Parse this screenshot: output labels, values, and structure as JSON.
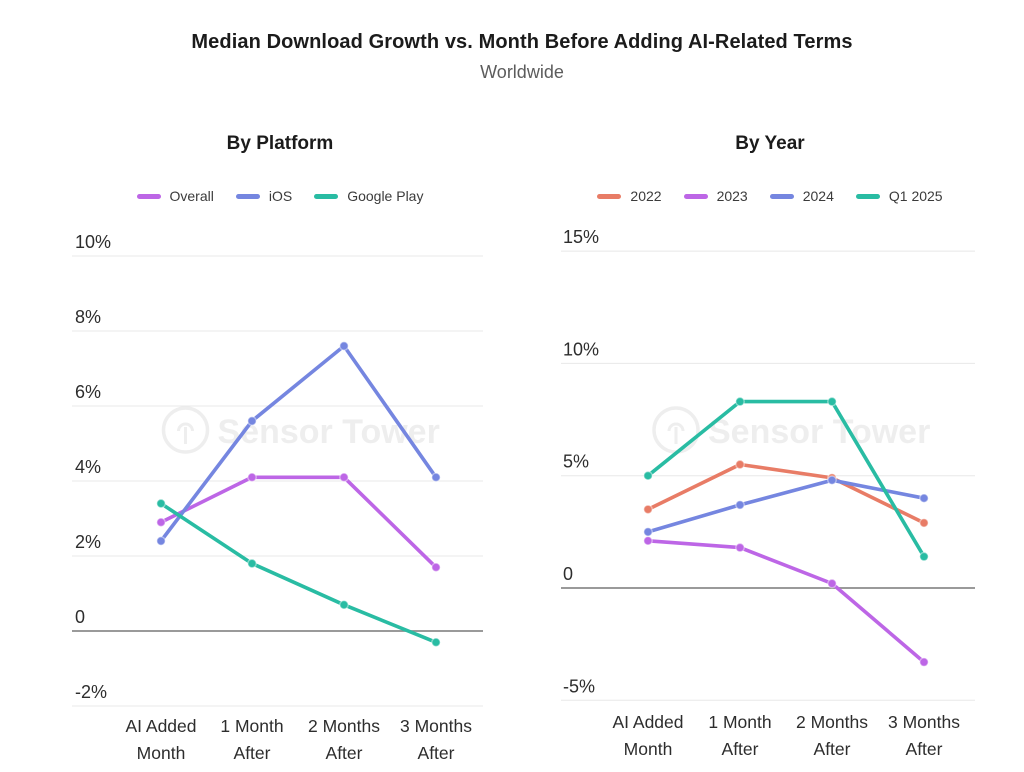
{
  "header": {
    "title": "Median Download Growth vs. Month Before Adding AI-Related Terms",
    "subtitle": "Worldwide"
  },
  "watermark": {
    "brand": "Sensor Tower"
  },
  "colors": {
    "purple": "#bd66e6",
    "blue": "#7586e0",
    "teal": "#29bca3",
    "salmon": "#e87c66",
    "grid": "#e8e8e8",
    "zero_line": "#8c8c8c",
    "axis_text": "#2d2d2d"
  },
  "chart_data": [
    {
      "type": "line",
      "title": "By Platform",
      "categories": [
        "AI Added Month",
        "1 Month After",
        "2 Months After",
        "3 Months After"
      ],
      "category_lines": [
        [
          "AI Added",
          "Month"
        ],
        [
          "1 Month",
          "After"
        ],
        [
          "2 Months",
          "After"
        ],
        [
          "3 Months",
          "After"
        ]
      ],
      "unit": "%",
      "series": [
        {
          "name": "Overall",
          "color": "#bd66e6",
          "values": [
            2.9,
            4.1,
            4.1,
            1.7
          ]
        },
        {
          "name": "iOS",
          "color": "#7586e0",
          "values": [
            2.4,
            5.6,
            7.6,
            4.1
          ]
        },
        {
          "name": "Google Play",
          "color": "#29bca3",
          "values": [
            3.4,
            1.8,
            0.7,
            -0.3
          ]
        }
      ],
      "yticks": [
        {
          "value": 10,
          "label": "10%"
        },
        {
          "value": 8,
          "label": "8%"
        },
        {
          "value": 6,
          "label": "6%"
        },
        {
          "value": 4,
          "label": "4%"
        },
        {
          "value": 2,
          "label": "2%"
        },
        {
          "value": 0,
          "label": "0"
        },
        {
          "value": -2,
          "label": "-2%"
        }
      ],
      "ylim": [
        -2.9,
        10.8
      ],
      "grid": true,
      "legend_position": "top"
    },
    {
      "type": "line",
      "title": "By Year",
      "categories": [
        "AI Added Month",
        "1 Month After",
        "2 Months After",
        "3 Months After"
      ],
      "category_lines": [
        [
          "AI Added",
          "Month"
        ],
        [
          "1 Month",
          "After"
        ],
        [
          "2 Months",
          "After"
        ],
        [
          "3 Months",
          "After"
        ]
      ],
      "unit": "%",
      "series": [
        {
          "name": "2022",
          "color": "#e87c66",
          "values": [
            3.5,
            5.5,
            4.9,
            2.9
          ]
        },
        {
          "name": "2023",
          "color": "#bd66e6",
          "values": [
            2.1,
            1.8,
            0.2,
            -3.3
          ]
        },
        {
          "name": "2024",
          "color": "#7586e0",
          "values": [
            2.5,
            3.7,
            4.8,
            4.0
          ]
        },
        {
          "name": "Q1 2025",
          "color": "#29bca3",
          "values": [
            5.0,
            8.3,
            8.3,
            1.4
          ]
        }
      ],
      "yticks": [
        {
          "value": 15,
          "label": "15%"
        },
        {
          "value": 10,
          "label": "10%"
        },
        {
          "value": 5,
          "label": "5%"
        },
        {
          "value": 0,
          "label": "0"
        },
        {
          "value": -5,
          "label": "-5%"
        }
      ],
      "ylim": [
        -6.1,
        16.1
      ],
      "grid": true,
      "legend_position": "top"
    }
  ]
}
